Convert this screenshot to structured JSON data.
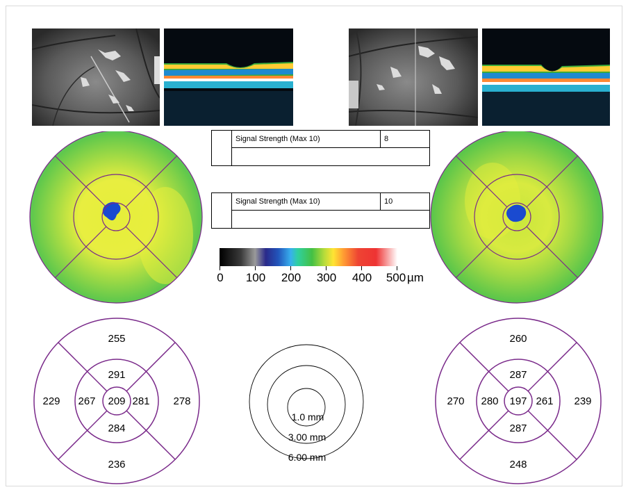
{
  "left_eye": {
    "signal_label": "Signal Strength (Max 10)",
    "signal_value": "8",
    "sectors": {
      "center": "209",
      "inner_superior": "291",
      "inner_inferior": "284",
      "inner_nasal_left": "267",
      "inner_temporal_right": "281",
      "outer_superior": "255",
      "outer_inferior": "236",
      "outer_left": "229",
      "outer_right": "278"
    }
  },
  "right_eye": {
    "signal_label": "Signal Strength (Max 10)",
    "signal_value": "10",
    "sectors": {
      "center": "197",
      "inner_superior": "287",
      "inner_inferior": "287",
      "inner_nasal_left": "280",
      "inner_temporal_right": "261",
      "outer_superior": "260",
      "outer_inferior": "248",
      "outer_left": "270",
      "outer_right": "239"
    }
  },
  "colorbar": {
    "ticks": [
      "0",
      "100",
      "200",
      "300",
      "400",
      "500"
    ],
    "unit": "µm"
  },
  "legend": {
    "inner": "1.0 mm",
    "middle": "3.00 mm",
    "outer": "6.00 mm"
  },
  "colors": {
    "grid_purple": "#7a2a8a",
    "map_green": "#5cc84a",
    "map_yellow": "#e6ee3a",
    "map_blue": "#1a4ad0"
  }
}
